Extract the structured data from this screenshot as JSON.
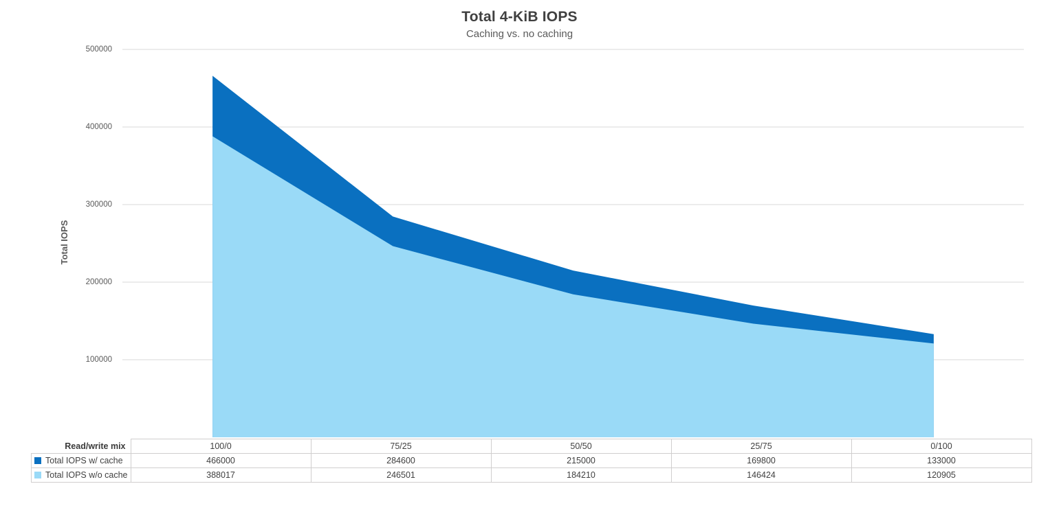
{
  "chart_data": {
    "type": "area",
    "title": "Total 4-KiB IOPS",
    "subtitle": "Caching vs. no caching",
    "ylabel": "Total IOPS",
    "row_header": "Read/write mix",
    "categories": [
      "100/0",
      "75/25",
      "50/50",
      "25/75",
      "0/100"
    ],
    "series": [
      {
        "name": "Total IOPS w/ cache",
        "color": "#0a70c0",
        "values": [
          466000,
          284600,
          215000,
          169800,
          133000
        ]
      },
      {
        "name": "Total IOPS w/o cache",
        "color": "#9adaf7",
        "values": [
          388017,
          246501,
          184210,
          146424,
          120905
        ]
      }
    ],
    "ylim": [
      0,
      500000
    ],
    "yticks": [
      100000,
      200000,
      300000,
      400000,
      500000
    ],
    "grid": "horizontal",
    "legend_position": "table-left"
  },
  "colors": {
    "series_cache": "#0a70c0",
    "series_no_cache": "#9adaf7",
    "gridline": "#d9d9d9",
    "table_border": "#d0cece",
    "title_text": "#404040",
    "axis_text": "#595959"
  }
}
